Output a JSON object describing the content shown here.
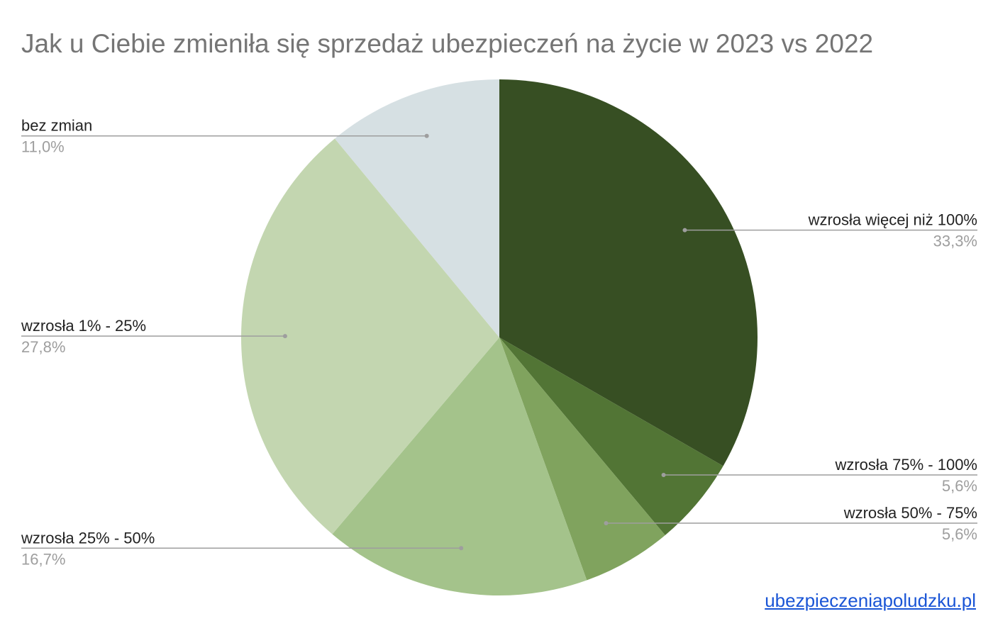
{
  "chart_data": {
    "type": "pie",
    "title": "Jak u Ciebie zmieniła się sprzedaż ubezpieczeń na życie w 2023 vs 2022",
    "start_angle_deg": 0,
    "direction": "clockwise",
    "slices": [
      {
        "label": "wzrosła więcej niż 100%",
        "value": 33.3,
        "value_label": "33,3%",
        "color": "#374f23",
        "side": "right"
      },
      {
        "label": "wzrosła 75% - 100%",
        "value": 5.6,
        "value_label": "5,6%",
        "color": "#527535",
        "side": "right"
      },
      {
        "label": "wzrosła 50% - 75%",
        "value": 5.6,
        "value_label": "5,6%",
        "color": "#80a35e",
        "side": "right"
      },
      {
        "label": "wzrosła 25% - 50%",
        "value": 16.7,
        "value_label": "16,7%",
        "color": "#a4c38b",
        "side": "left"
      },
      {
        "label": "wzrosła 1% - 25%",
        "value": 27.8,
        "value_label": "27,8%",
        "color": "#c3d6b0",
        "side": "left"
      },
      {
        "label": "bez zmian",
        "value": 11.0,
        "value_label": "11,0%",
        "color": "#d6e0e3",
        "side": "left"
      }
    ]
  },
  "source": {
    "text": "ubezpieczeniapoludzku.pl"
  }
}
